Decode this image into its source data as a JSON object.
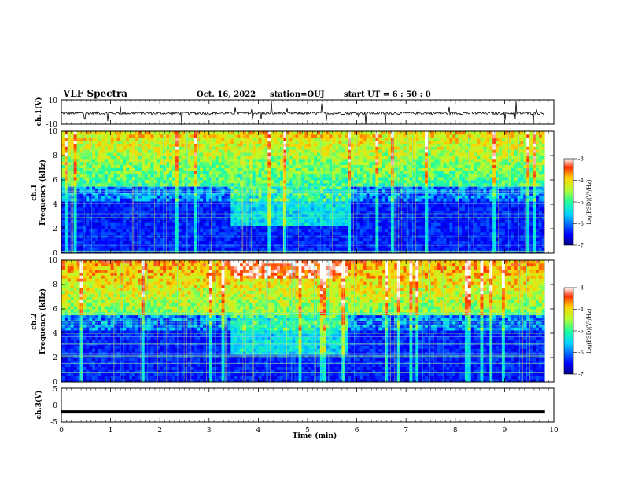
{
  "header": {
    "title": "VLF Spectra",
    "date": "Oct. 16, 2022",
    "station": "station=OUJ",
    "start": "start  UT =  6 : 50 : 0"
  },
  "chart_data": [
    {
      "type": "line",
      "id": "ch1-waveform",
      "ylabel": "ch.1(V)",
      "ylim": [
        -10,
        10
      ],
      "y_ticks": [
        "10",
        "-10"
      ],
      "xlim": [
        0,
        10
      ],
      "baseline": -1,
      "description_of_series": "noisy broadband waveform with sferic spikes"
    },
    {
      "type": "heatmap",
      "id": "ch1-spectrogram",
      "ylabel": "ch.1\nFrequency (kHz)",
      "ylabel_line1": "ch.1",
      "ylabel_line2": "Frequency (kHz)",
      "ylim": [
        0,
        10
      ],
      "y_ticks": [
        "0",
        "2",
        "4",
        "6",
        "8",
        "10"
      ],
      "xlim": [
        0,
        10
      ],
      "colorbar": {
        "label": "log(PSD)(V²/Hz)",
        "range": [
          -7,
          -3
        ],
        "ticks": [
          "-3",
          "-4",
          "-5",
          "-6",
          "-7"
        ]
      }
    },
    {
      "type": "heatmap",
      "id": "ch2-spectrogram",
      "ylabel_line1": "ch.2",
      "ylabel_line2": "Frequency (kHz)",
      "ylim": [
        0,
        10
      ],
      "y_ticks": [
        "0",
        "2",
        "4",
        "6",
        "8",
        "10"
      ],
      "xlim": [
        0,
        10
      ],
      "colorbar": {
        "label": "log(PSD)(V²/Hz)",
        "range": [
          -7,
          -3
        ],
        "ticks": [
          "-3",
          "-4",
          "-5",
          "-6",
          "-7"
        ]
      }
    },
    {
      "type": "line",
      "id": "ch3-waveform",
      "ylabel": "ch.3(V)",
      "ylim": [
        -5,
        5
      ],
      "y_ticks": [
        "5",
        "0",
        "-5"
      ],
      "xlim": [
        0,
        10
      ],
      "constant_value": -2
    }
  ],
  "xaxis": {
    "label": "Time (min)",
    "ticks": [
      "0",
      "1",
      "2",
      "3",
      "4",
      "5",
      "6",
      "7",
      "8",
      "9",
      "10"
    ],
    "data_end": 9.82
  }
}
